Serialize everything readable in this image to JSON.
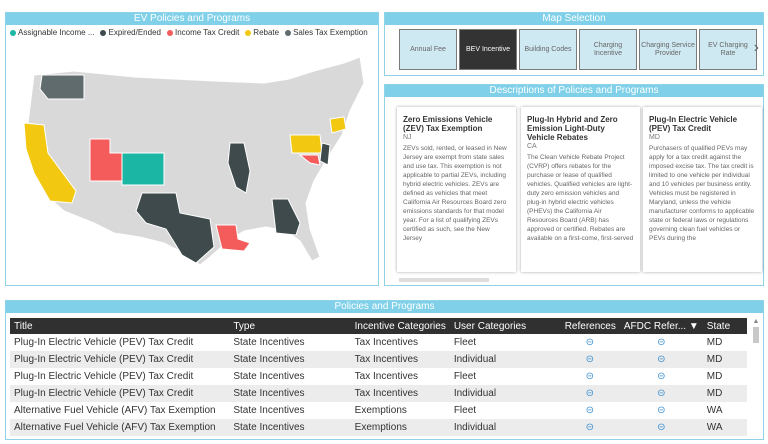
{
  "map_panel": {
    "title": "EV Policies and Programs",
    "legend": [
      {
        "label": "Assignable Income ...",
        "color": "#1bb7a4"
      },
      {
        "label": "Expired/Ended",
        "color": "#3e4a4c"
      },
      {
        "label": "Income Tax Credit",
        "color": "#f45b5b"
      },
      {
        "label": "Rebate",
        "color": "#f2c811"
      },
      {
        "label": "Sales Tax Exemption",
        "color": "#5f6b6d"
      }
    ]
  },
  "selection_panel": {
    "title": "Map Selection",
    "buttons": [
      "Annual Fee",
      "BEV Incentive",
      "Building Codes",
      "Charging Incentive",
      "Charging Service Provider",
      "EV Charging Rate"
    ],
    "active": "BEV Incentive",
    "next_glyph": "›"
  },
  "descriptions_panel": {
    "title": "Descriptions of Policies and Programs",
    "cards": [
      {
        "title": "Zero Emissions Vehicle (ZEV) Tax Exemption",
        "state": "NJ",
        "body": "ZEVs sold, rented, or leased in New Jersey are exempt from state sales and use tax. This exemption is not applicable to partial ZEVs, including hybrid electric vehicles. ZEVs are defined as vehicles that meet California Air Resources Board zero emissions standards for that model year. For a list of qualifying ZEVs certified as such, see the New Jersey"
      },
      {
        "title": "Plug-In Hybrid and Zero Emission Light-Duty Vehicle Rebates",
        "state": "CA",
        "body": "The Clean Vehicle Rebate Project (CVRP) offers rebates for the purchase or lease of qualified vehicles. Qualified vehicles are light-duty zero emission vehicles and plug-in hybrid electric vehicles (PHEVs) the California Air Resources Board (ARB) has approved or certified. Rebates are available on a first-come, first-served"
      },
      {
        "title": "Plug-In Electric Vehicle (PEV) Tax Credit",
        "state": "MD",
        "body": "Purchasers of qualified PEVs may apply for a tax credit against the imposed excise tax. The tax credit is limited to one vehicle per individual and 10 vehicles per business entity. Vehicles must be registered in Maryland, unless the vehicle manufacturer conforms to applicable state or federal laws or regulations governing clean fuel vehicles or PEVs during the"
      }
    ]
  },
  "table_panel": {
    "title": "Policies and Programs",
    "columns": [
      "Title",
      "Type",
      "Incentive Categories",
      "User Categories",
      "References",
      "AFDC Refer...",
      "State"
    ],
    "sort_glyph": "▼",
    "link_glyph": "⊝",
    "rows": [
      [
        "Plug-In Electric Vehicle (PEV) Tax Credit",
        "State Incentives",
        "Tax Incentives",
        "Fleet",
        "MD"
      ],
      [
        "Plug-In Electric Vehicle (PEV) Tax Credit",
        "State Incentives",
        "Tax Incentives",
        "Individual",
        "MD"
      ],
      [
        "Plug-In Electric Vehicle (PEV) Tax Credit",
        "State Incentives",
        "Tax Incentives",
        "Fleet",
        "MD"
      ],
      [
        "Plug-In Electric Vehicle (PEV) Tax Credit",
        "State Incentives",
        "Tax Incentives",
        "Individual",
        "MD"
      ],
      [
        "Alternative Fuel Vehicle (AFV) Tax Exemption",
        "State Incentives",
        "Exemptions",
        "Fleet",
        "WA"
      ],
      [
        "Alternative Fuel Vehicle (AFV) Tax Exemption",
        "State Incentives",
        "Exemptions",
        "Individual",
        "WA"
      ]
    ]
  },
  "colors": {
    "header": "#7fd0e8",
    "state_default": "#d9d9d9",
    "teal": "#1bb7a4",
    "dark": "#3e4a4c",
    "red": "#f45b5b",
    "yellow": "#f2c811"
  }
}
